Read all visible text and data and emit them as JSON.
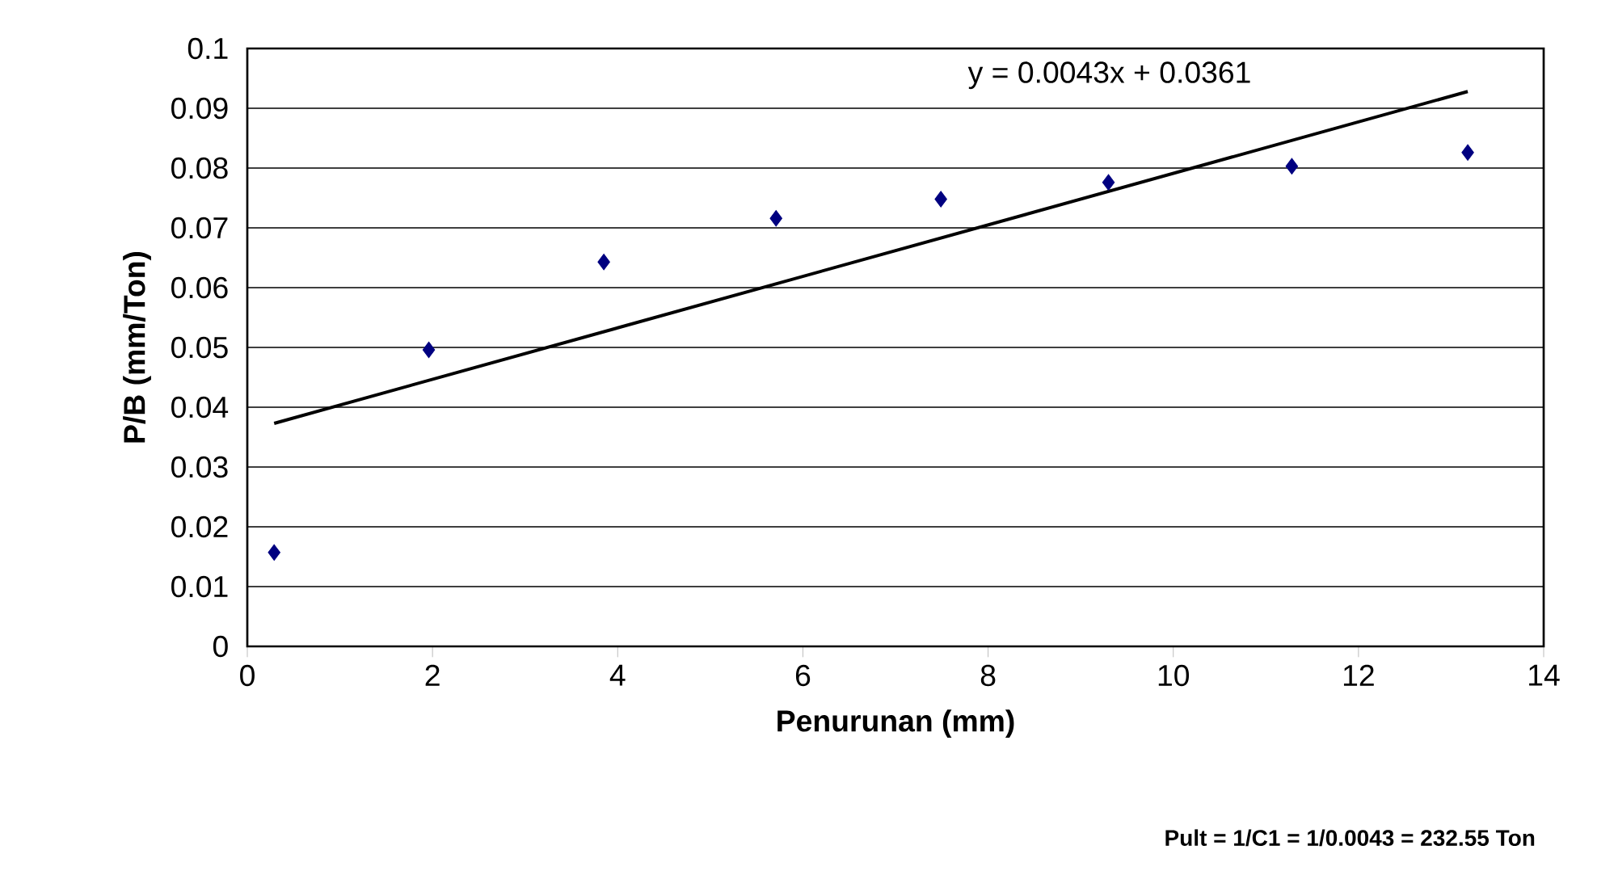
{
  "chart_data": {
    "type": "scatter",
    "xlabel": "Penurunan (mm)",
    "ylabel": "P/B (mm/Ton)",
    "annotations": [
      "y = 0.0043x + 0.0361",
      "Pult = 1/C1 = 1/0.0043 = 232.55 Ton"
    ],
    "series": [
      {
        "color": "#000080",
        "marker": "diamond",
        "x": [
          0.29,
          1.96,
          3.85,
          5.71,
          7.49,
          9.3,
          11.28,
          13.18
        ],
        "values": [
          0.0157,
          0.0496,
          0.0643,
          0.0716,
          0.0748,
          0.0776,
          0.0803,
          0.0826
        ]
      },
      {
        "type": "line",
        "color": "#000000",
        "marker": "none",
        "x": [
          0.29,
          13.18
        ],
        "values": [
          0.0373,
          0.0928
        ]
      }
    ],
    "xlim": [
      0,
      14
    ],
    "ylim": [
      0,
      0.1
    ],
    "xticks": [
      0,
      2,
      4,
      6,
      8,
      10,
      12,
      14
    ],
    "yticks": [
      0,
      0.01,
      0.02,
      0.03,
      0.04,
      0.05,
      0.06,
      0.07,
      0.08,
      0.09,
      0.1
    ],
    "grid": "y"
  }
}
